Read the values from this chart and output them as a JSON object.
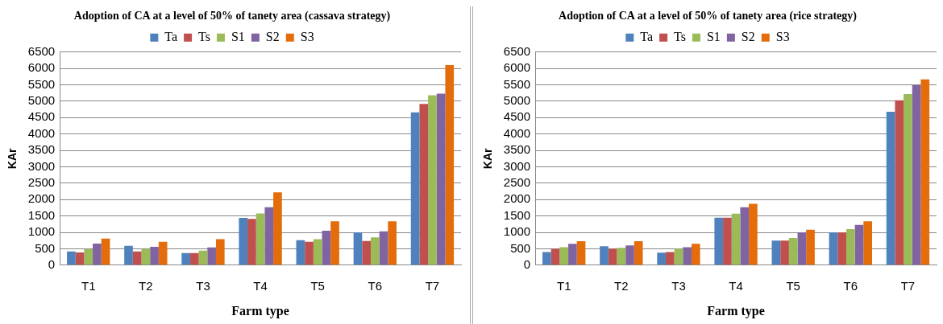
{
  "chart_data": [
    {
      "type": "bar",
      "title": "Adoption of CA at a level of 50% of tanety area (cassava strategy)",
      "xlabel": "Farm type",
      "ylabel": "KAr",
      "categories": [
        "T1",
        "T2",
        "T3",
        "T4",
        "T5",
        "T6",
        "T7"
      ],
      "series": [
        {
          "name": "Ta",
          "color": "#4f81bd",
          "values": [
            420,
            590,
            370,
            1440,
            760,
            1000,
            4660
          ]
        },
        {
          "name": "Ts",
          "color": "#c0504d",
          "values": [
            390,
            420,
            370,
            1410,
            710,
            740,
            4920
          ]
        },
        {
          "name": "S1",
          "color": "#9bbb59",
          "values": [
            490,
            490,
            440,
            1580,
            790,
            850,
            5180
          ]
        },
        {
          "name": "S2",
          "color": "#8064a2",
          "values": [
            660,
            560,
            540,
            1770,
            1050,
            1030,
            5230
          ]
        },
        {
          "name": "S3",
          "color": "#e46c0a",
          "values": [
            810,
            710,
            790,
            2220,
            1340,
            1340,
            6100
          ]
        }
      ],
      "ylim": [
        0,
        6500
      ],
      "yticks": [
        0,
        500,
        1000,
        1500,
        2000,
        2500,
        3000,
        3500,
        4000,
        4500,
        5000,
        5500,
        6000,
        6500
      ],
      "grid": "y",
      "legend": "top"
    },
    {
      "type": "bar",
      "title": "Adoption of CA at a level of 50% of tanety area (rice strategy)",
      "xlabel": "Farm type",
      "ylabel": "KAr",
      "categories": [
        "T1",
        "T2",
        "T3",
        "T4",
        "T5",
        "T6",
        "T7"
      ],
      "series": [
        {
          "name": "Ta",
          "color": "#4f81bd",
          "values": [
            400,
            580,
            380,
            1450,
            750,
            1000,
            4680
          ]
        },
        {
          "name": "Ts",
          "color": "#c0504d",
          "values": [
            500,
            500,
            400,
            1450,
            750,
            1000,
            5030
          ]
        },
        {
          "name": "S1",
          "color": "#9bbb59",
          "values": [
            550,
            530,
            500,
            1570,
            830,
            1100,
            5220
          ]
        },
        {
          "name": "S2",
          "color": "#8064a2",
          "values": [
            650,
            600,
            550,
            1770,
            1000,
            1230,
            5490
          ]
        },
        {
          "name": "S3",
          "color": "#e46c0a",
          "values": [
            730,
            730,
            650,
            1870,
            1080,
            1340,
            5670
          ]
        }
      ],
      "ylim": [
        0,
        6500
      ],
      "yticks": [
        0,
        500,
        1000,
        1500,
        2000,
        2500,
        3000,
        3500,
        4000,
        4500,
        5000,
        5500,
        6000,
        6500
      ],
      "grid": "y",
      "legend": "top"
    }
  ]
}
